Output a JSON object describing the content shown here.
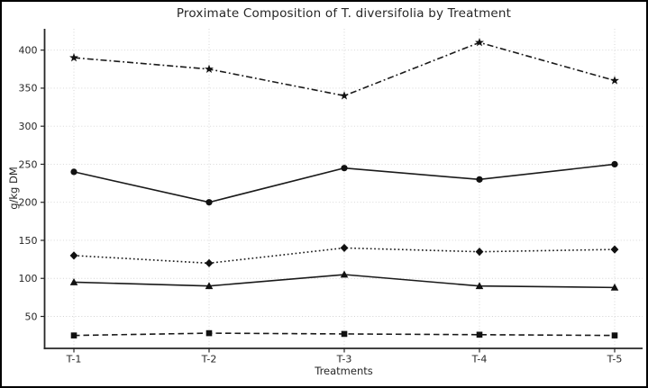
{
  "chart_data": {
    "type": "line",
    "title": "Proximate Composition of T. diversifolia by Treatment",
    "xlabel": "Treatments",
    "ylabel": "g/kg DM",
    "categories": [
      "T-1",
      "T-2",
      "T-3",
      "T-4",
      "T-5"
    ],
    "yticks": [
      50,
      100,
      150,
      200,
      250,
      300,
      350,
      400
    ],
    "ylim": [
      8,
      428
    ],
    "grid": true,
    "legend_position": "none",
    "colors": {
      "line": "#1a1a1a",
      "marker": "#111111",
      "axis": "#262626",
      "gridline": "#d2d2d2",
      "background": "#ffffff"
    },
    "series": [
      {
        "name": "series-dashdot-star",
        "marker": "star",
        "linestyle": "dashdot",
        "values": [
          390,
          375,
          340,
          410,
          360
        ]
      },
      {
        "name": "series-solid-circle",
        "marker": "circle",
        "linestyle": "solid",
        "values": [
          240,
          200,
          245,
          230,
          250
        ]
      },
      {
        "name": "series-dotted-diamond",
        "marker": "diamond",
        "linestyle": "dotted",
        "values": [
          130,
          120,
          140,
          135,
          138
        ]
      },
      {
        "name": "series-solid-triangle",
        "marker": "triangle",
        "linestyle": "solid",
        "values": [
          95,
          90,
          105,
          90,
          88
        ]
      },
      {
        "name": "series-dashed-square",
        "marker": "square",
        "linestyle": "dashed",
        "values": [
          25,
          28,
          27,
          26,
          25
        ]
      }
    ]
  }
}
